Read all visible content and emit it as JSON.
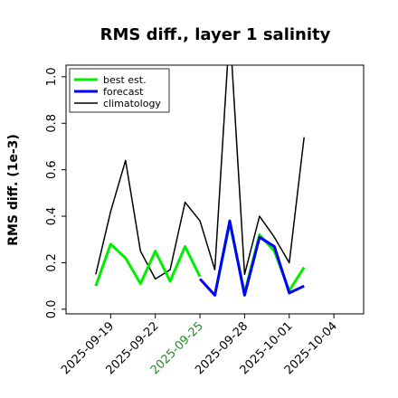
{
  "chart_data": {
    "type": "line",
    "title": "RMS diff., layer 1 salinity",
    "xlabel": "",
    "ylabel": "RMS diff. (1e-3)",
    "xlim": [
      "2025-09-16",
      "2025-10-06"
    ],
    "ylim": [
      -0.02,
      1.05
    ],
    "yticks": [
      "0.0",
      "0.2",
      "0.4",
      "0.6",
      "0.8",
      "1.0"
    ],
    "xticks": [
      "2025-09-19",
      "2025-09-22",
      "2025-09-25",
      "2025-09-28",
      "2025-10-01",
      "2025-10-04"
    ],
    "highlight_tick": "2025-09-25",
    "highlight_color": "#228b22",
    "legend_position": "upper-left",
    "grid": false,
    "series": [
      {
        "name": "best est.",
        "color": "#00ee00",
        "x": [
          "2025-09-18",
          "2025-09-19",
          "2025-09-20",
          "2025-09-21",
          "2025-09-22",
          "2025-09-23",
          "2025-09-24",
          "2025-09-25"
        ],
        "values": [
          0.1,
          0.28,
          0.22,
          0.11,
          0.25,
          0.12,
          0.27,
          0.14
        ]
      },
      {
        "name": "best est.",
        "color": "#00ee00",
        "x": [
          "2025-09-26",
          "2025-09-27",
          "2025-09-28",
          "2025-09-29",
          "2025-09-30",
          "2025-10-01",
          "2025-10-02"
        ],
        "values": [
          0.06,
          0.37,
          0.07,
          0.32,
          0.25,
          0.08,
          0.18
        ]
      },
      {
        "name": "forecast",
        "color": "#0000ff",
        "x": [
          "2025-09-25",
          "2025-09-26",
          "2025-09-27",
          "2025-09-28",
          "2025-09-29",
          "2025-09-30",
          "2025-10-01",
          "2025-10-02"
        ],
        "values": [
          0.13,
          0.06,
          0.38,
          0.06,
          0.31,
          0.27,
          0.07,
          0.1
        ]
      },
      {
        "name": "climatology",
        "color": "#000000",
        "x": [
          "2025-09-18",
          "2025-09-19",
          "2025-09-20",
          "2025-09-21",
          "2025-09-22",
          "2025-09-23",
          "2025-09-24",
          "2025-09-25",
          "2025-09-26",
          "2025-09-27",
          "2025-09-28",
          "2025-09-29",
          "2025-09-30",
          "2025-10-01",
          "2025-10-02"
        ],
        "values": [
          0.15,
          0.42,
          0.64,
          0.25,
          0.13,
          0.17,
          0.46,
          0.38,
          0.17,
          1.21,
          0.15,
          0.4,
          0.31,
          0.2,
          0.74
        ]
      }
    ],
    "legend": [
      {
        "label": "best est.",
        "color": "#00ee00",
        "width": 3
      },
      {
        "label": "forecast",
        "color": "#0000ff",
        "width": 3
      },
      {
        "label": "climatology",
        "color": "#000000",
        "width": 1.5
      }
    ]
  }
}
